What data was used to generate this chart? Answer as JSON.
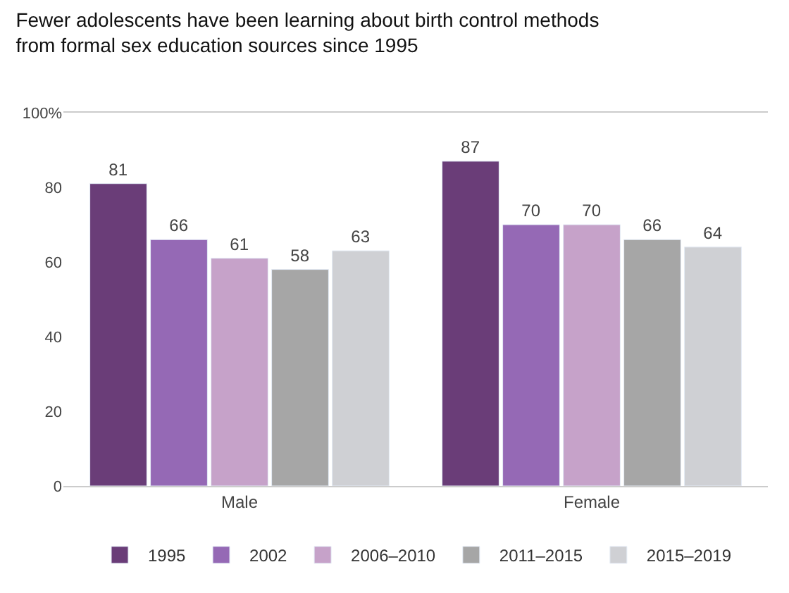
{
  "chart_data": {
    "type": "bar",
    "title": "Fewer adolescents have been learning about birth control methods\nfrom formal sex education sources since 1995",
    "categories": [
      "Male",
      "Female"
    ],
    "series": [
      {
        "name": "1995",
        "color": "#6a3d78",
        "values": [
          81,
          87
        ]
      },
      {
        "name": "2002",
        "color": "#9569b5",
        "values": [
          66,
          70
        ]
      },
      {
        "name": "2006–2010",
        "color": "#c6a2c9",
        "values": [
          61,
          70
        ]
      },
      {
        "name": "2011–2015",
        "color": "#a6a6a6",
        "values": [
          58,
          66
        ]
      },
      {
        "name": "2015–2019",
        "color": "#cfd0d4",
        "values": [
          63,
          64
        ]
      }
    ],
    "ylim": [
      0,
      100
    ],
    "yticks": [
      0,
      20,
      40,
      60,
      80,
      {
        "value": 100,
        "label": "100%"
      }
    ],
    "data_labels": true,
    "legend": "bottom",
    "grid": false
  }
}
